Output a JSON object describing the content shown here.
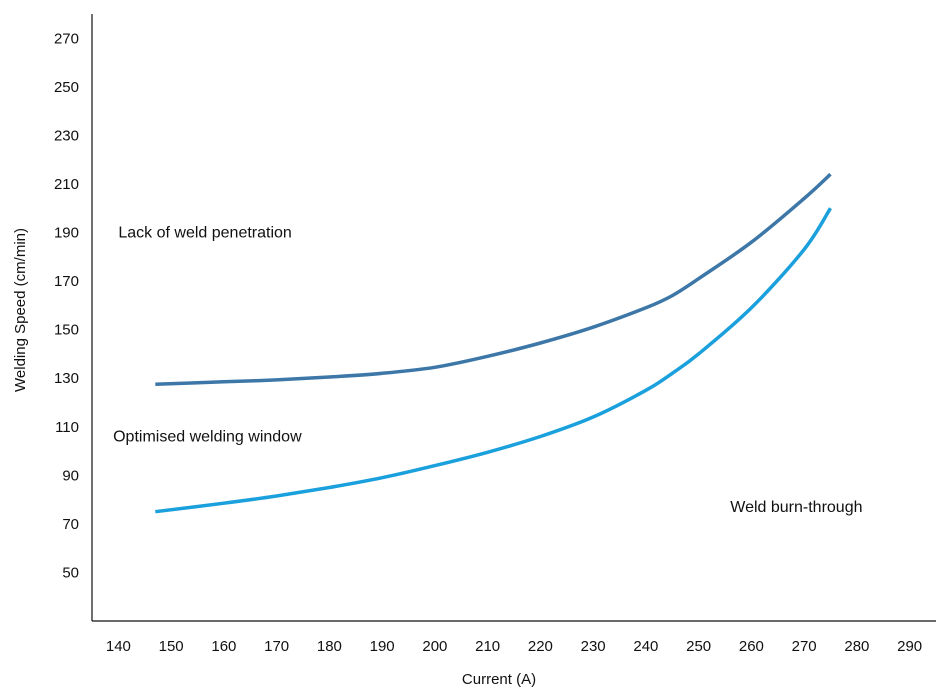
{
  "chart_data": {
    "type": "line",
    "xlabel": "Current (A)",
    "ylabel": "Welding Speed (cm/min)",
    "xlim": [
      135,
      295
    ],
    "ylim": [
      30,
      280
    ],
    "x_ticks": [
      140,
      150,
      160,
      170,
      180,
      190,
      200,
      210,
      220,
      230,
      240,
      250,
      260,
      270,
      280,
      290
    ],
    "y_ticks": [
      50,
      70,
      90,
      110,
      130,
      150,
      170,
      190,
      210,
      230,
      250,
      270
    ],
    "grid": false,
    "legend": "none",
    "series": [
      {
        "color": "#3d77a8",
        "x": [
          147,
          160,
          170,
          180,
          190,
          200,
          210,
          220,
          230,
          240,
          245,
          250,
          260,
          270,
          275
        ],
        "values": [
          127.5,
          128.5,
          129.3,
          130.5,
          132,
          134.5,
          139,
          144.5,
          151,
          159,
          164,
          171,
          186,
          204,
          214
        ]
      },
      {
        "color": "#1aa0dc",
        "x": [
          147,
          160,
          170,
          180,
          190,
          200,
          210,
          220,
          230,
          240,
          245,
          250,
          260,
          270,
          275
        ],
        "values": [
          75,
          78.5,
          81.5,
          85,
          89,
          94,
          99.5,
          106,
          114,
          125,
          132,
          140,
          159,
          183,
          200
        ]
      }
    ],
    "annotations": [
      {
        "text": "Lack of weld penetration",
        "x": 140,
        "y": 190
      },
      {
        "text": "Optimised welding window",
        "x": 139,
        "y": 106
      },
      {
        "text": "Weld burn-through",
        "x": 256,
        "y": 77
      }
    ]
  }
}
